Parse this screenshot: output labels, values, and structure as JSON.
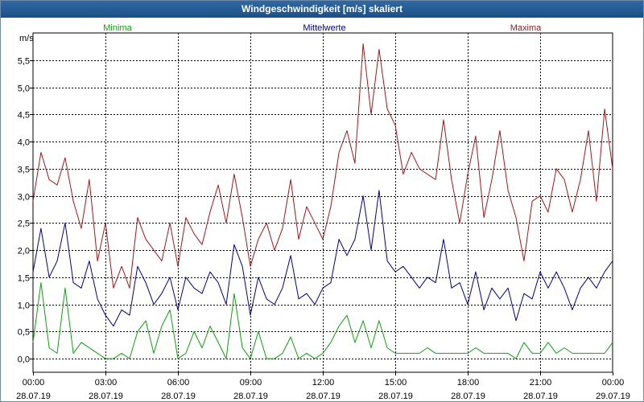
{
  "window": {
    "title": "Windgeschwindigkeit [m/s] skaliert"
  },
  "chart_data": {
    "type": "line",
    "title": "Windgeschwindigkeit [m/s] skaliert",
    "ylabel": "m/s",
    "xlabel": "",
    "ylim": [
      -0.25,
      6.0
    ],
    "yticks": [
      0.0,
      0.5,
      1.0,
      1.5,
      2.0,
      2.5,
      3.0,
      3.5,
      4.0,
      4.5,
      5.0,
      5.5
    ],
    "ytick_labels": [
      "0,0",
      "0,5",
      "1,0",
      "1,5",
      "2,0",
      "2,5",
      "3,0",
      "3,5",
      "4,0",
      "4,5",
      "5,0",
      "5,5"
    ],
    "xlim_hours": [
      0,
      24
    ],
    "xticks_hours": [
      0,
      3,
      6,
      9,
      12,
      15,
      18,
      21,
      24
    ],
    "xtick_time_labels": [
      "00:00",
      "03:00",
      "06:00",
      "09:00",
      "12:00",
      "15:00",
      "18:00",
      "21:00",
      "00:00"
    ],
    "xtick_date_labels": [
      "28.07.19",
      "28.07.19",
      "28.07.19",
      "28.07.19",
      "28.07.19",
      "28.07.19",
      "28.07.19",
      "28.07.19",
      "29.07.19"
    ],
    "legend": [
      "Minima",
      "Mittelwerte",
      "Maxima"
    ],
    "grid": true,
    "series": [
      {
        "name": "Maxima",
        "color": "#a01818",
        "x": [
          0.0,
          0.33,
          0.67,
          1.0,
          1.33,
          1.67,
          2.0,
          2.33,
          2.67,
          3.0,
          3.33,
          3.67,
          4.0,
          4.33,
          4.67,
          5.0,
          5.33,
          5.67,
          6.0,
          6.33,
          6.67,
          7.0,
          7.33,
          7.67,
          8.0,
          8.33,
          8.67,
          9.0,
          9.33,
          9.67,
          10.0,
          10.33,
          10.67,
          11.0,
          11.33,
          11.67,
          12.0,
          12.33,
          12.67,
          13.0,
          13.33,
          13.67,
          14.0,
          14.33,
          14.67,
          15.0,
          15.33,
          15.67,
          16.0,
          16.33,
          16.67,
          17.0,
          17.33,
          17.67,
          18.0,
          18.33,
          18.67,
          19.0,
          19.33,
          19.67,
          20.0,
          20.33,
          20.67,
          21.0,
          21.33,
          21.67,
          22.0,
          22.33,
          22.67,
          23.0,
          23.33,
          23.67,
          24.0
        ],
        "values": [
          2.9,
          3.8,
          3.3,
          3.2,
          3.7,
          2.9,
          2.4,
          3.3,
          1.8,
          2.5,
          1.3,
          1.7,
          1.3,
          2.6,
          2.2,
          2.0,
          1.8,
          2.5,
          1.7,
          2.6,
          2.3,
          2.1,
          2.7,
          3.2,
          2.5,
          3.4,
          2.6,
          1.7,
          2.2,
          2.5,
          2.0,
          2.4,
          3.3,
          2.2,
          2.8,
          2.5,
          2.2,
          2.8,
          3.8,
          4.2,
          3.6,
          5.8,
          4.5,
          5.7,
          4.6,
          4.3,
          3.4,
          3.8,
          3.5,
          3.4,
          3.3,
          4.4,
          3.3,
          2.5,
          3.4,
          4.1,
          2.6,
          3.3,
          4.2,
          3.1,
          2.6,
          1.8,
          2.9,
          3.0,
          2.7,
          3.5,
          3.3,
          2.7,
          3.3,
          4.2,
          2.9,
          4.6,
          3.5
        ]
      },
      {
        "name": "Mittelwerte",
        "color": "#00008c",
        "x": [
          0.0,
          0.33,
          0.67,
          1.0,
          1.33,
          1.67,
          2.0,
          2.33,
          2.67,
          3.0,
          3.33,
          3.67,
          4.0,
          4.33,
          4.67,
          5.0,
          5.33,
          5.67,
          6.0,
          6.33,
          6.67,
          7.0,
          7.33,
          7.67,
          8.0,
          8.33,
          8.67,
          9.0,
          9.33,
          9.67,
          10.0,
          10.33,
          10.67,
          11.0,
          11.33,
          11.67,
          12.0,
          12.33,
          12.67,
          13.0,
          13.33,
          13.67,
          14.0,
          14.33,
          14.67,
          15.0,
          15.33,
          15.67,
          16.0,
          16.33,
          16.67,
          17.0,
          17.33,
          17.67,
          18.0,
          18.33,
          18.67,
          19.0,
          19.33,
          19.67,
          20.0,
          20.33,
          20.67,
          21.0,
          21.33,
          21.67,
          22.0,
          22.33,
          22.67,
          23.0,
          23.33,
          23.67,
          24.0
        ],
        "values": [
          1.6,
          2.4,
          1.5,
          1.8,
          2.5,
          1.4,
          1.3,
          1.8,
          1.1,
          0.8,
          0.6,
          0.9,
          0.8,
          1.7,
          1.4,
          1.0,
          1.2,
          1.5,
          0.9,
          1.5,
          1.3,
          1.2,
          1.6,
          1.4,
          1.0,
          2.1,
          1.7,
          0.8,
          1.5,
          1.1,
          1.0,
          1.3,
          1.9,
          1.1,
          1.2,
          1.0,
          1.3,
          1.4,
          2.2,
          1.9,
          2.2,
          3.0,
          2.0,
          3.1,
          1.8,
          1.6,
          1.7,
          1.5,
          1.3,
          1.5,
          1.4,
          2.2,
          1.3,
          1.4,
          1.0,
          1.6,
          0.9,
          1.3,
          1.1,
          1.3,
          0.7,
          1.2,
          1.1,
          1.6,
          1.3,
          1.6,
          1.3,
          0.9,
          1.3,
          1.5,
          1.3,
          1.6,
          1.8
        ]
      },
      {
        "name": "Minima",
        "color": "#10a010",
        "x": [
          0.0,
          0.33,
          0.67,
          1.0,
          1.33,
          1.67,
          2.0,
          2.33,
          2.67,
          3.0,
          3.33,
          3.67,
          4.0,
          4.33,
          4.67,
          5.0,
          5.33,
          5.67,
          6.0,
          6.33,
          6.67,
          7.0,
          7.33,
          7.67,
          8.0,
          8.33,
          8.67,
          9.0,
          9.33,
          9.67,
          10.0,
          10.33,
          10.67,
          11.0,
          11.33,
          11.67,
          12.0,
          12.33,
          12.67,
          13.0,
          13.33,
          13.67,
          14.0,
          14.33,
          14.67,
          15.0,
          15.33,
          15.67,
          16.0,
          16.33,
          16.67,
          17.0,
          17.33,
          17.67,
          18.0,
          18.33,
          18.67,
          19.0,
          19.33,
          19.67,
          20.0,
          20.33,
          20.67,
          21.0,
          21.33,
          21.67,
          22.0,
          22.33,
          22.67,
          23.0,
          23.33,
          23.67,
          24.0
        ],
        "values": [
          0.3,
          1.4,
          0.2,
          0.1,
          1.3,
          0.1,
          0.3,
          0.2,
          0.1,
          0.0,
          0.0,
          0.1,
          0.0,
          0.5,
          0.7,
          0.1,
          0.6,
          0.9,
          0.0,
          0.1,
          0.5,
          0.2,
          0.6,
          0.3,
          0.0,
          1.2,
          0.2,
          0.0,
          0.5,
          0.0,
          0.0,
          0.1,
          0.4,
          0.0,
          0.1,
          0.0,
          0.1,
          0.3,
          0.6,
          0.8,
          0.3,
          0.7,
          0.2,
          0.7,
          0.2,
          0.1,
          0.1,
          0.1,
          0.1,
          0.2,
          0.1,
          0.1,
          0.1,
          0.1,
          0.1,
          0.2,
          0.1,
          0.1,
          0.1,
          0.1,
          0.0,
          0.3,
          0.1,
          0.1,
          0.3,
          0.1,
          0.2,
          0.1,
          0.1,
          0.1,
          0.1,
          0.1,
          0.3
        ]
      }
    ]
  }
}
